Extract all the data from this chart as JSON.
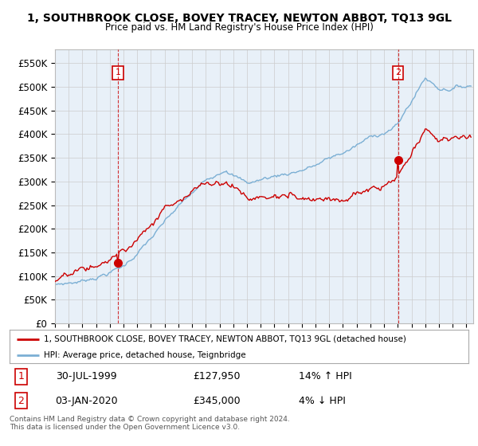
{
  "title": "1, SOUTHBROOK CLOSE, BOVEY TRACEY, NEWTON ABBOT, TQ13 9GL",
  "subtitle": "Price paid vs. HM Land Registry's House Price Index (HPI)",
  "hpi_label": "HPI: Average price, detached house, Teignbridge",
  "property_label": "1, SOUTHBROOK CLOSE, BOVEY TRACEY, NEWTON ABBOT, TQ13 9GL (detached house)",
  "sale1_date": "30-JUL-1999",
  "sale1_price": 127950,
  "sale1_hpi_pct": "14% ↑ HPI",
  "sale2_date": "03-JAN-2020",
  "sale2_price": 345000,
  "sale2_hpi_pct": "4% ↓ HPI",
  "ylabel_ticks": [
    "£0",
    "£50K",
    "£100K",
    "£150K",
    "£200K",
    "£250K",
    "£300K",
    "£350K",
    "£400K",
    "£450K",
    "£500K",
    "£550K"
  ],
  "ytick_values": [
    0,
    50000,
    100000,
    150000,
    200000,
    250000,
    300000,
    350000,
    400000,
    450000,
    500000,
    550000
  ],
  "ylim": [
    0,
    580000
  ],
  "hpi_color": "#7BAFD4",
  "property_color": "#CC0000",
  "annotation_color": "#CC0000",
  "plot_bg_color": "#E8F0F8",
  "background_color": "#FFFFFF",
  "grid_color": "#CCCCCC",
  "footer_text": "Contains HM Land Registry data © Crown copyright and database right 2024.\nThis data is licensed under the Open Government Licence v3.0.",
  "sale1_x": 1999.58,
  "sale2_x": 2020.01
}
